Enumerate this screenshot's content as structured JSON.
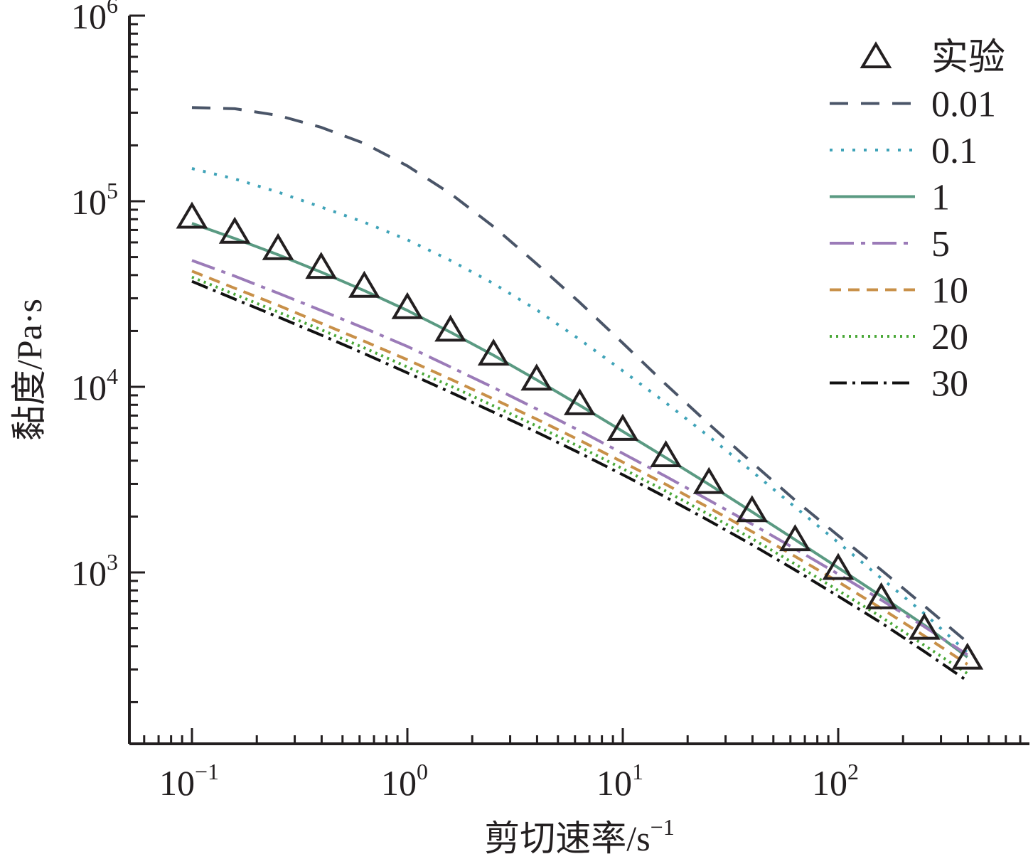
{
  "chart_data": {
    "type": "line",
    "xscale": "log",
    "yscale": "log",
    "xlim": [
      0.05,
      700
    ],
    "ylim": [
      100,
      1000000
    ],
    "xlabel_main": "剪切速率/s",
    "xlabel_sup": "−1",
    "ylabel": "黏度/Pa·s",
    "x_ticks": [
      {
        "base": "10",
        "exp": "−1",
        "value": 0.1
      },
      {
        "base": "10",
        "exp": "0",
        "value": 1
      },
      {
        "base": "10",
        "exp": "1",
        "value": 10
      },
      {
        "base": "10",
        "exp": "2",
        "value": 100
      }
    ],
    "y_ticks": [
      {
        "base": "10",
        "exp": "3",
        "value": 1000
      },
      {
        "base": "10",
        "exp": "4",
        "value": 10000
      },
      {
        "base": "10",
        "exp": "5",
        "value": 100000
      },
      {
        "base": "10",
        "exp": "6",
        "value": 1000000
      }
    ],
    "experiment": {
      "name": "实验",
      "marker": "triangle",
      "color": "#231f20",
      "x": [
        0.1,
        0.158,
        0.251,
        0.398,
        0.631,
        1.0,
        1.585,
        2.512,
        3.981,
        6.31,
        10.0,
        15.85,
        25.12,
        39.81,
        63.1,
        100,
        158.5,
        251.2,
        398.1
      ],
      "y": [
        82000,
        68000,
        55500,
        44000,
        34800,
        26700,
        20200,
        15000,
        11000,
        8100,
        5900,
        4250,
        3050,
        2150,
        1500,
        1050,
        730,
        500,
        345
      ]
    },
    "series": [
      {
        "name": "0.01",
        "color": "#4a5568",
        "dash": "26,18",
        "x": [
          0.1,
          0.158,
          0.251,
          0.398,
          0.631,
          1.0,
          1.585,
          2.512,
          3.981,
          6.31,
          10.0,
          15.85,
          25.12,
          39.81,
          63.1,
          100,
          158.5,
          251.2,
          398.1
        ],
        "y": [
          320000,
          315000,
          290000,
          250000,
          205000,
          155000,
          110000,
          73000,
          46000,
          28500,
          17200,
          10300,
          6300,
          3900,
          2450,
          1580,
          1030,
          660,
          420
        ]
      },
      {
        "name": "0.1",
        "color": "#3fa3b8",
        "dash": "4,12",
        "x": [
          0.1,
          0.158,
          0.251,
          0.398,
          0.631,
          1.0,
          1.585,
          2.512,
          3.981,
          6.31,
          10.0,
          15.85,
          25.12,
          39.81,
          63.1,
          100,
          158.5,
          251.2,
          398.1
        ],
        "y": [
          150000,
          132000,
          112000,
          93000,
          77000,
          62000,
          48000,
          36000,
          26000,
          18000,
          12200,
          8200,
          5400,
          3500,
          2250,
          1450,
          930,
          600,
          370
        ]
      },
      {
        "name": "1",
        "color": "#5a9a82",
        "dash": "",
        "x": [
          0.1,
          0.158,
          0.251,
          0.398,
          0.631,
          1.0,
          1.585,
          2.512,
          3.981,
          6.31,
          10.0,
          15.85,
          25.12,
          39.81,
          63.1,
          100,
          158.5,
          251.2,
          398.1
        ],
        "y": [
          76000,
          63000,
          51500,
          41500,
          33000,
          25800,
          19700,
          14800,
          10900,
          7950,
          5750,
          4150,
          2980,
          2120,
          1500,
          1060,
          745,
          520,
          350
        ]
      },
      {
        "name": "5",
        "color": "#9b7bb8",
        "dash": "34,10,6,10",
        "x": [
          0.1,
          0.158,
          0.251,
          0.398,
          0.631,
          1.0,
          1.585,
          2.512,
          3.981,
          6.31,
          10.0,
          15.85,
          25.12,
          39.81,
          63.1,
          100,
          158.5,
          251.2,
          398.1
        ],
        "y": [
          48000,
          39500,
          32000,
          25800,
          20700,
          16500,
          12800,
          9900,
          7600,
          5800,
          4380,
          3290,
          2450,
          1820,
          1340,
          980,
          710,
          510,
          360
        ]
      },
      {
        "name": "10",
        "color": "#c89048",
        "dash": "16,10",
        "x": [
          0.1,
          0.158,
          0.251,
          0.398,
          0.631,
          1.0,
          1.585,
          2.512,
          3.981,
          6.31,
          10.0,
          15.85,
          25.12,
          39.81,
          63.1,
          100,
          158.5,
          251.2,
          398.1
        ],
        "y": [
          42000,
          34000,
          27500,
          22000,
          17600,
          14000,
          11000,
          8600,
          6700,
          5150,
          3930,
          2980,
          2230,
          1660,
          1220,
          890,
          640,
          455,
          320
        ]
      },
      {
        "name": "20",
        "color": "#4aa838",
        "dash": "3,6",
        "x": [
          0.1,
          0.158,
          0.251,
          0.398,
          0.631,
          1.0,
          1.585,
          2.512,
          3.981,
          6.31,
          10.0,
          15.85,
          25.12,
          39.81,
          63.1,
          100,
          158.5,
          251.2,
          398.1
        ],
        "y": [
          39000,
          31500,
          25300,
          20300,
          16200,
          12800,
          10100,
          7900,
          6150,
          4750,
          3620,
          2740,
          2050,
          1520,
          1110,
          800,
          575,
          405,
          285
        ]
      },
      {
        "name": "30",
        "color": "#111111",
        "dash": "24,8,4,8",
        "x": [
          0.1,
          0.158,
          0.251,
          0.398,
          0.631,
          1.0,
          1.585,
          2.512,
          3.981,
          6.31,
          10.0,
          15.85,
          25.12,
          39.81,
          63.1,
          100,
          158.5,
          251.2,
          398.1
        ],
        "y": [
          37000,
          29700,
          23800,
          19000,
          15100,
          11900,
          9350,
          7300,
          5700,
          4400,
          3360,
          2540,
          1900,
          1410,
          1030,
          745,
          535,
          375,
          260
        ]
      }
    ]
  }
}
